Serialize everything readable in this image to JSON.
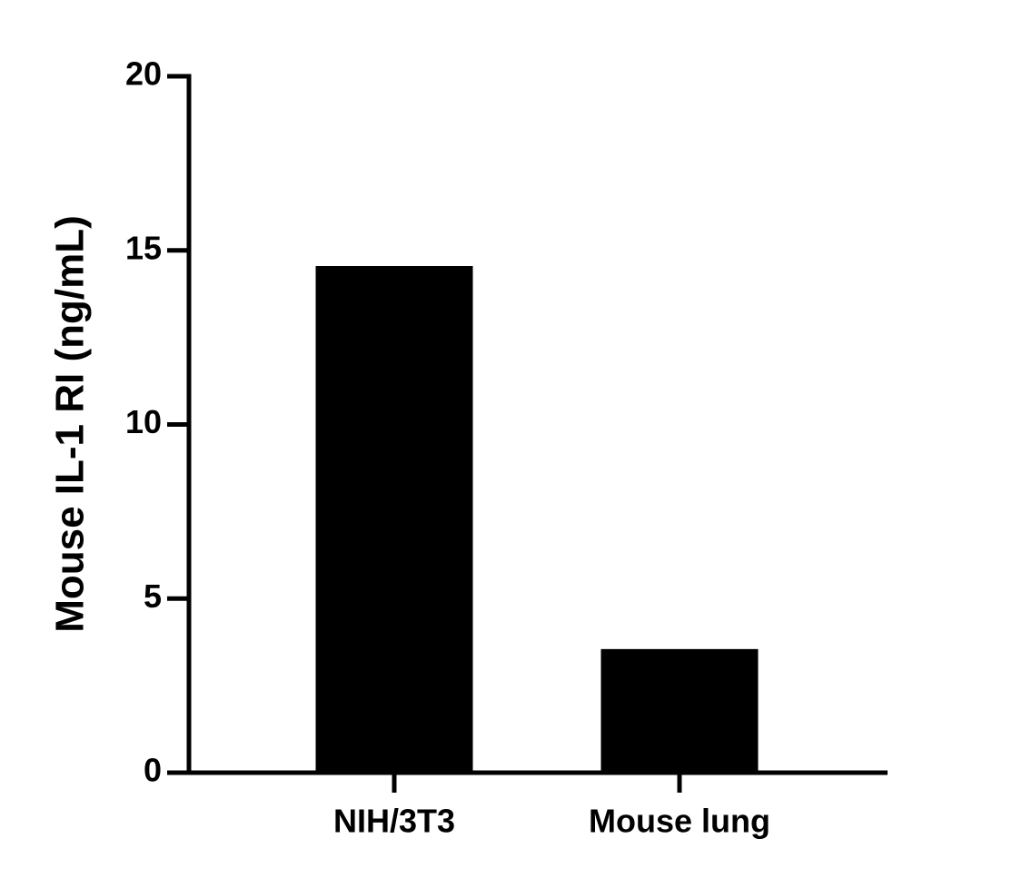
{
  "chart_data": {
    "type": "bar",
    "y_label": "Mouse IL-1 RI (ng/mL)",
    "categories": [
      "NIH/3T3",
      "Mouse lung"
    ],
    "values": [
      14.55,
      3.55
    ],
    "color": "#000000",
    "ylim": [
      0,
      20
    ],
    "yticks": [
      0,
      5,
      10,
      15,
      20
    ]
  }
}
